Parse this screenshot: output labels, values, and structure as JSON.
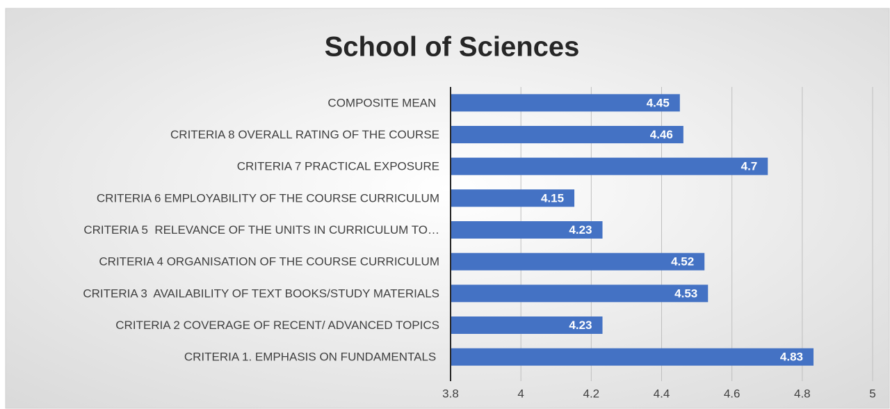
{
  "chart_data": {
    "type": "bar",
    "orientation": "horizontal",
    "title": "School of Sciences",
    "categories": [
      "COMPOSITE MEAN ",
      "CRITERIA 8 OVERALL RATING OF THE COURSE",
      "CRITERIA 7 PRACTICAL EXPOSURE",
      "CRITERIA 6 EMPLOYABILITY OF THE COURSE CURRICULUM",
      "CRITERIA 5  RELEVANCE OF THE UNITS IN CURRICULUM TO…",
      "CRITERIA 4 ORGANISATION OF THE COURSE CURRICULUM",
      "CRITERIA 3  AVAILABILITY OF TEXT BOOKS/STUDY MATERIALS",
      "CRITERIA 2 COVERAGE OF RECENT/ ADVANCED TOPICS",
      "CRITERIA 1. EMPHASIS ON FUNDAMENTALS "
    ],
    "values": [
      4.45,
      4.46,
      4.7,
      4.15,
      4.23,
      4.52,
      4.53,
      4.23,
      4.83
    ],
    "color": "#4472c4",
    "xlim": [
      3.8,
      5
    ],
    "xticks": [
      3.8,
      4,
      4.2,
      4.4,
      4.6,
      4.8,
      5
    ],
    "grid": true
  }
}
